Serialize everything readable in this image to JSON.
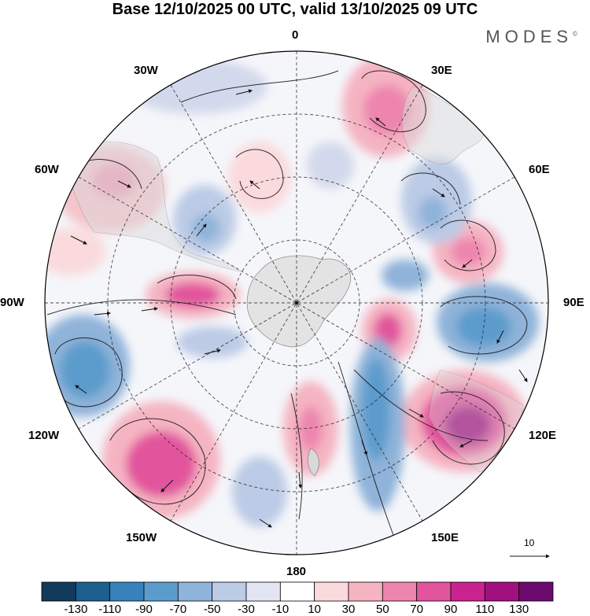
{
  "title": "Base 12/10/2025 00 UTC, valid 13/10/2025 09 UTC",
  "brand": {
    "name": "MODES",
    "mark": "©"
  },
  "longitude_labels": {
    "lon_0": "0",
    "lon_30e": "30E",
    "lon_60e": "60E",
    "lon_90e": "90E",
    "lon_120e": "120E",
    "lon_150e": "150E",
    "lon_180": "180",
    "lon_150w": "150W",
    "lon_120w": "120W",
    "lon_90w": "90W",
    "lon_60w": "60W",
    "lon_30w": "30W"
  },
  "vector_reference": {
    "label": "10"
  },
  "colorbar": {
    "colors": [
      "#113a5c",
      "#1d5f8f",
      "#3782bb",
      "#5c9ccc",
      "#8fb3d9",
      "#bccbe6",
      "#e3e6f2",
      "#ffffff",
      "#fadadd",
      "#f5b4c2",
      "#ee85ae",
      "#e2549d",
      "#c9238f",
      "#a0117f",
      "#6b0a6f"
    ],
    "labels": [
      "-130",
      "-110",
      "-90",
      "-70",
      "-50",
      "-30",
      "-10",
      "10",
      "30",
      "50",
      "70",
      "90",
      "110",
      "130"
    ]
  }
}
